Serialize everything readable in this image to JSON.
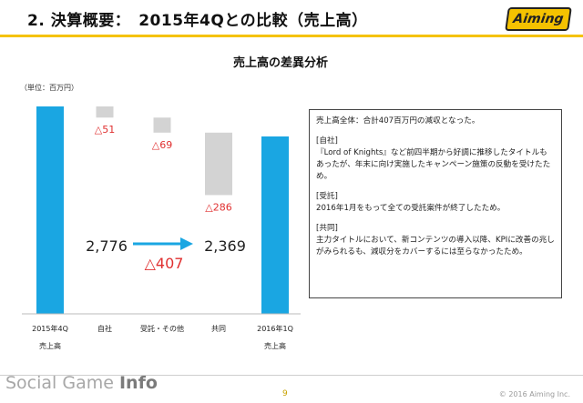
{
  "slide": {
    "title": "2. 決算概要：　2015年4Qとの比較（売上高）",
    "logo_text": "Aiming",
    "page_number": "9",
    "copyright": "© 2016 Aiming Inc.",
    "brand_prefix": "Social Game ",
    "brand_suffix": "Info",
    "accent_color": "#f5c200"
  },
  "chart_data": {
    "type": "waterfall",
    "title": "売上高の差異分析",
    "unit_label": "（単位：百万円）",
    "categories": [
      {
        "label": "2015年4Q",
        "sublabel": "売上高"
      },
      {
        "label": "自社",
        "sublabel": ""
      },
      {
        "label": "受託・その他",
        "sublabel": ""
      },
      {
        "label": "共同",
        "sublabel": ""
      },
      {
        "label": "2016年1Q",
        "sublabel": "売上高"
      }
    ],
    "start_value": 2776,
    "changes": [
      -51,
      -69,
      -286
    ],
    "end_value": 2369,
    "change_labels": [
      "△51",
      "△69",
      "△286"
    ],
    "start_label": "2,776",
    "end_label": "2,369",
    "total_change_label": "△407",
    "colors": {
      "total_bar": "#1aa6e2",
      "change_bar": "#d3d3d3",
      "change_text": "#e03030",
      "arrow": "#1aa6e2"
    }
  },
  "notes": [
    {
      "head": "",
      "text": "売上高全体：合計407百万円の減収となった。"
    },
    {
      "head": "[自社]",
      "text": "『Lord of Knights』など前四半期から好調に推移したタイトルもあったが、年末に向け実施したキャンペーン施策の反動を受けたため。"
    },
    {
      "head": "[受託]",
      "text": "2016年1月をもって全ての受託案件が終了したため。"
    },
    {
      "head": "[共同]",
      "text": "主力タイトルにおいて、新コンテンツの導入以降、KPIに改善の兆しがみられるも、減収分をカバーするには至らなかったため。"
    }
  ]
}
